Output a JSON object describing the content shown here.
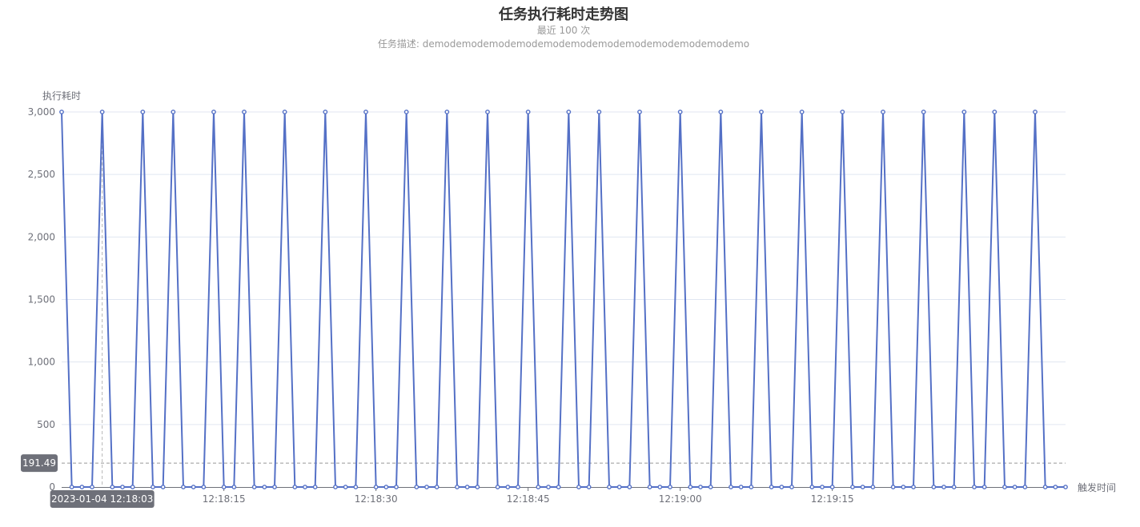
{
  "chart_data": {
    "type": "line",
    "title": "任务执行耗时走势图",
    "subtitle_lines": [
      "最近 100 次",
      "任务描述: demodemodemodemodemodemodemodemodemodemodemodemo"
    ],
    "ylabel": "执行耗时",
    "xlabel": "触发时间",
    "ylim": [
      0,
      3000
    ],
    "y_ticks": [
      0,
      500,
      1000,
      1500,
      2000,
      2500,
      3000
    ],
    "y_tick_labels": [
      "0",
      "500",
      "1,000",
      "1,500",
      "2,000",
      "2,500",
      "3,000"
    ],
    "x_start": "2023-01-04 12:17:59",
    "x_interval_seconds": 1,
    "x_tick_labels": [
      "12:18:15",
      "12:18:30",
      "12:18:45",
      "12:19:00",
      "12:19:15"
    ],
    "grid": true,
    "series": [
      {
        "values": [
          3000,
          0,
          0,
          0,
          3000,
          0,
          0,
          0,
          3000,
          0,
          0,
          3000,
          0,
          0,
          0,
          3000,
          0,
          0,
          3000,
          0,
          0,
          0,
          3000,
          0,
          0,
          0,
          3000,
          0,
          0,
          0,
          3000,
          0,
          0,
          0,
          3000,
          0,
          0,
          0,
          3000,
          0,
          0,
          0,
          3000,
          0,
          0,
          0,
          3000,
          0,
          0,
          0,
          3000,
          0,
          0,
          3000,
          0,
          0,
          0,
          3000,
          0,
          0,
          0,
          3000,
          0,
          0,
          0,
          3000,
          0,
          0,
          0,
          3000,
          0,
          0,
          0,
          3000,
          0,
          0,
          0,
          3000,
          0,
          0,
          0,
          3000,
          0,
          0,
          0,
          3000,
          0,
          0,
          0,
          3000,
          0,
          0,
          3000,
          0,
          0,
          0,
          3000,
          0,
          0,
          0
        ],
        "color": "#5470c6"
      }
    ],
    "axis_pointer": {
      "x_label": "2023-01-04 12:18:03",
      "y_label": "191.49",
      "y_value": 191.49
    }
  }
}
